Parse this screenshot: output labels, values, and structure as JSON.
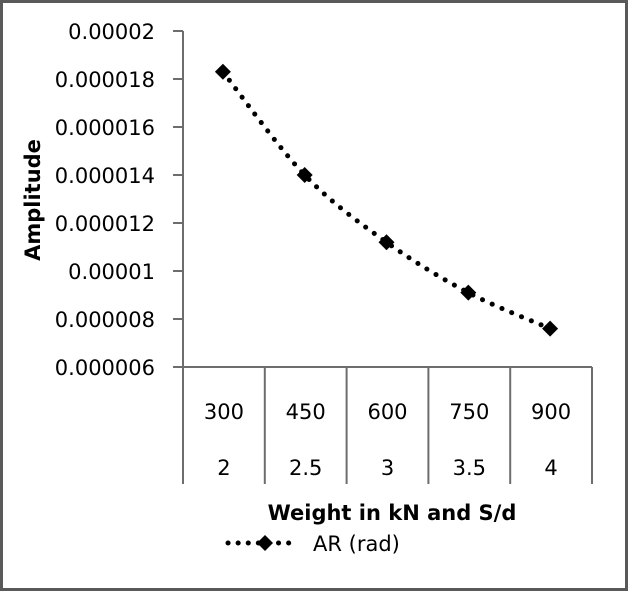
{
  "chart_data": {
    "type": "line",
    "title": "",
    "xlabel": "Weight in kN and S/d",
    "ylabel": "Amplitude",
    "categories": [
      [
        "300",
        "2"
      ],
      [
        "450",
        "2.5"
      ],
      [
        "600",
        "3"
      ],
      [
        "750",
        "3.5"
      ],
      [
        "900",
        "4"
      ]
    ],
    "category_rows": {
      "weight_kN": [
        "300",
        "450",
        "600",
        "750",
        "900"
      ],
      "s_over_d": [
        "2",
        "2.5",
        "3",
        "3.5",
        "4"
      ]
    },
    "series": [
      {
        "name": "AR (rad)",
        "values": [
          1.83e-05,
          1.4e-05,
          1.12e-05,
          9.1e-06,
          7.6e-06
        ],
        "marker": "diamond",
        "line_style": "dotted",
        "color": "#000000"
      }
    ],
    "ylim": [
      6e-06,
      2e-05
    ],
    "yticks": [
      "0.000006",
      "0.000008",
      "0.00001",
      "0.000012",
      "0.000014",
      "0.000016",
      "0.000018",
      "0.00002"
    ],
    "grid": false,
    "legend_position": "bottom"
  },
  "axis": {
    "y_title": "Amplitude",
    "x_title": "Weight in kN and S/d"
  },
  "legend": {
    "label": "AR (rad)"
  },
  "colors": {
    "border": "#595959",
    "axis": "#6d6d6d",
    "series": "#000000"
  }
}
